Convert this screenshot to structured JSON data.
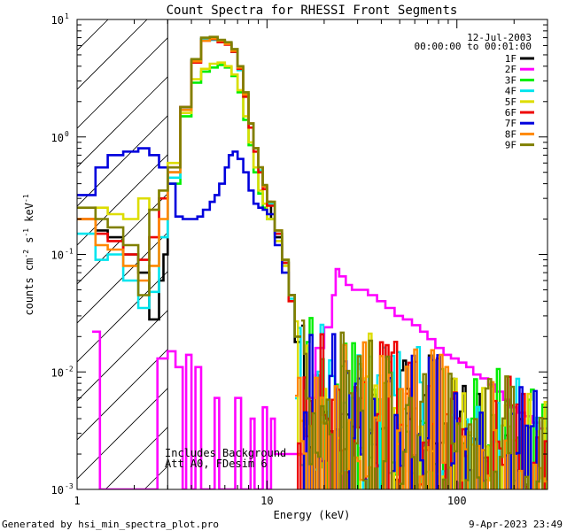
{
  "chart_data": {
    "type": "line",
    "title": "Count Spectra for RHESSI Front Segments",
    "xlabel": "Energy (keV)",
    "ylabel_parts": [
      "counts cm",
      "-2",
      " s",
      "-1",
      " keV",
      "-1"
    ],
    "xscale": "log",
    "yscale": "log",
    "xlim": [
      1,
      300
    ],
    "ylim": [
      0.001,
      10
    ],
    "x_ticks": [
      {
        "value": 1,
        "label": "1"
      },
      {
        "value": 10,
        "label": "10"
      },
      {
        "value": 100,
        "label": "100"
      }
    ],
    "y_ticks": [
      {
        "value": 0.001,
        "base": "10",
        "exp": "-3"
      },
      {
        "value": 0.01,
        "base": "10",
        "exp": "-2"
      },
      {
        "value": 0.1,
        "base": "10",
        "exp": "-1"
      },
      {
        "value": 1,
        "base": "10",
        "exp": "0"
      },
      {
        "value": 10,
        "base": "10",
        "exp": "1"
      }
    ],
    "hatched_region": {
      "x_from": 1,
      "x_to": 3,
      "meaning": "excluded low-energy range"
    },
    "date": "12-Jul-2003",
    "time_range": "00:00:00 to 00:01:00",
    "annotations": [
      "Includes Background",
      "Att A0, FDesim 6"
    ],
    "legend_position": "top-right",
    "series": [
      {
        "name": "1F",
        "color": "#000000",
        "bins": [
          [
            1,
            0.2
          ],
          [
            1.25,
            0.16
          ],
          [
            1.45,
            0.14
          ],
          [
            1.75,
            0.1
          ],
          [
            2.1,
            0.07
          ],
          [
            2.4,
            0.028
          ],
          [
            2.7,
            0.06
          ],
          [
            2.85,
            0.1
          ],
          [
            3,
            0.5
          ],
          [
            3.5,
            1.8
          ],
          [
            4,
            4.5
          ],
          [
            4.5,
            6.8
          ],
          [
            5,
            6.9
          ],
          [
            5.5,
            6.6
          ],
          [
            6,
            6.3
          ],
          [
            6.5,
            5.5
          ],
          [
            7,
            3.8
          ],
          [
            7.5,
            2.3
          ],
          [
            8,
            1.3
          ],
          [
            8.5,
            0.8
          ],
          [
            9,
            0.55
          ],
          [
            9.5,
            0.38
          ],
          [
            10,
            0.28
          ],
          [
            10.5,
            0.2
          ],
          [
            11,
            0.14
          ],
          [
            12,
            0.085
          ],
          [
            13,
            0.045
          ],
          [
            14,
            0.018
          ]
        ],
        "tail": "noise"
      },
      {
        "name": "2F",
        "color": "#ff00ff",
        "bins": [
          [
            1.2,
            0.022
          ],
          [
            1.32,
            0.001
          ],
          [
            2.65,
            0.013
          ],
          [
            3,
            0.015
          ],
          [
            3.3,
            0.011
          ],
          [
            3.6,
            0.001
          ],
          [
            3.75,
            0.014
          ],
          [
            4,
            0.001
          ],
          [
            4.2,
            0.011
          ],
          [
            4.5,
            0.001
          ],
          [
            5.3,
            0.006
          ],
          [
            5.6,
            0.001
          ],
          [
            6.8,
            0.006
          ],
          [
            7.3,
            0.001
          ],
          [
            8.2,
            0.004
          ],
          [
            8.6,
            0.001
          ],
          [
            9.5,
            0.005
          ],
          [
            10,
            0.001
          ],
          [
            10.5,
            0.004
          ],
          [
            11,
            0.002
          ],
          [
            16,
            0.006
          ],
          [
            18,
            0.016
          ],
          [
            20,
            0.024
          ],
          [
            22,
            0.045
          ],
          [
            23,
            0.075
          ],
          [
            24,
            0.065
          ],
          [
            26,
            0.055
          ],
          [
            28,
            0.05
          ],
          [
            31,
            0.05
          ],
          [
            34,
            0.045
          ],
          [
            38,
            0.04
          ],
          [
            42,
            0.035
          ],
          [
            47,
            0.03
          ],
          [
            52,
            0.028
          ],
          [
            58,
            0.025
          ],
          [
            64,
            0.022
          ],
          [
            70,
            0.019
          ],
          [
            77,
            0.016
          ],
          [
            85,
            0.014
          ],
          [
            93,
            0.013
          ],
          [
            102,
            0.012
          ],
          [
            112,
            0.011
          ],
          [
            122,
            0.0095
          ],
          [
            133,
            0.0088
          ],
          [
            146,
            0.0078
          ],
          [
            160,
            0.0068
          ],
          [
            175,
            0.0058
          ],
          [
            190,
            0.005
          ],
          [
            208,
            0.0045
          ],
          [
            228,
            0.0042
          ],
          [
            250,
            0.0037
          ],
          [
            272,
            0.0033
          ],
          [
            300,
            0.0033
          ]
        ],
        "tail": "none"
      },
      {
        "name": "3F",
        "color": "#00ee00",
        "bins": [
          [
            3,
            0.4
          ],
          [
            3.5,
            1.5
          ],
          [
            4,
            2.9
          ],
          [
            4.5,
            3.6
          ],
          [
            5,
            3.9
          ],
          [
            5.5,
            4.1
          ],
          [
            6,
            3.9
          ],
          [
            6.5,
            3.3
          ],
          [
            7,
            2.4
          ],
          [
            7.5,
            1.4
          ],
          [
            8,
            0.85
          ],
          [
            8.5,
            0.5
          ],
          [
            9,
            0.33
          ],
          [
            9.5,
            0.25
          ],
          [
            10,
            0.2
          ],
          [
            11,
            0.15
          ],
          [
            12,
            0.09
          ],
          [
            13,
            0.045
          ],
          [
            14,
            0.02
          ]
        ],
        "tail": "noise"
      },
      {
        "name": "4F",
        "color": "#00e5ee",
        "bins": [
          [
            1,
            0.15
          ],
          [
            1.25,
            0.09
          ],
          [
            1.45,
            0.1
          ],
          [
            1.75,
            0.06
          ],
          [
            2.1,
            0.035
          ],
          [
            2.4,
            0.048
          ],
          [
            2.7,
            0.14
          ],
          [
            3,
            0.45
          ],
          [
            3.5,
            1.7
          ],
          [
            4,
            4.4
          ],
          [
            4.5,
            6.8
          ],
          [
            5,
            6.7
          ],
          [
            5.5,
            6.5
          ],
          [
            6,
            6.2
          ],
          [
            6.5,
            5.3
          ],
          [
            7,
            3.7
          ],
          [
            7.5,
            2.2
          ],
          [
            8,
            1.2
          ],
          [
            8.5,
            0.75
          ],
          [
            9,
            0.52
          ],
          [
            9.5,
            0.36
          ],
          [
            10,
            0.27
          ],
          [
            11,
            0.15
          ],
          [
            12,
            0.085
          ],
          [
            13,
            0.042
          ]
        ],
        "tail": "noise"
      },
      {
        "name": "5F",
        "color": "#dddd00",
        "bins": [
          [
            1,
            0.2
          ],
          [
            1.25,
            0.25
          ],
          [
            1.45,
            0.22
          ],
          [
            1.75,
            0.2
          ],
          [
            2.1,
            0.3
          ],
          [
            2.4,
            0.24
          ],
          [
            2.7,
            0.35
          ],
          [
            3,
            0.6
          ],
          [
            3.5,
            1.6
          ],
          [
            4,
            3.1
          ],
          [
            4.5,
            3.8
          ],
          [
            5,
            4.2
          ],
          [
            5.5,
            4.3
          ],
          [
            6,
            4.0
          ],
          [
            6.5,
            3.4
          ],
          [
            7,
            2.5
          ],
          [
            7.5,
            1.5
          ],
          [
            8,
            0.9
          ],
          [
            8.5,
            0.55
          ],
          [
            9,
            0.35
          ],
          [
            9.5,
            0.27
          ],
          [
            10,
            0.2
          ],
          [
            11,
            0.13
          ],
          [
            12,
            0.08
          ],
          [
            13,
            0.04
          ]
        ],
        "tail": "noise"
      },
      {
        "name": "6F",
        "color": "#ee0000",
        "bins": [
          [
            1,
            0.2
          ],
          [
            1.25,
            0.15
          ],
          [
            1.45,
            0.13
          ],
          [
            1.75,
            0.1
          ],
          [
            2.1,
            0.09
          ],
          [
            2.4,
            0.14
          ],
          [
            2.7,
            0.3
          ],
          [
            3,
            0.55
          ],
          [
            3.5,
            1.8
          ],
          [
            4,
            4.3
          ],
          [
            4.5,
            6.6
          ],
          [
            5,
            6.8
          ],
          [
            5.5,
            6.4
          ],
          [
            6,
            6.1
          ],
          [
            6.5,
            5.3
          ],
          [
            7,
            3.8
          ],
          [
            7.5,
            2.2
          ],
          [
            8,
            1.2
          ],
          [
            8.5,
            0.75
          ],
          [
            9,
            0.5
          ],
          [
            9.5,
            0.36
          ],
          [
            10,
            0.26
          ],
          [
            11,
            0.15
          ],
          [
            12,
            0.085
          ],
          [
            13,
            0.04
          ]
        ],
        "tail": "noise"
      },
      {
        "name": "7F",
        "color": "#0000dd",
        "bins": [
          [
            1,
            0.32
          ],
          [
            1.25,
            0.55
          ],
          [
            1.45,
            0.7
          ],
          [
            1.75,
            0.75
          ],
          [
            2.1,
            0.8
          ],
          [
            2.4,
            0.7
          ],
          [
            2.7,
            0.55
          ],
          [
            3,
            0.4
          ],
          [
            3.3,
            0.21
          ],
          [
            3.6,
            0.2
          ],
          [
            4,
            0.2
          ],
          [
            4.3,
            0.21
          ],
          [
            4.6,
            0.24
          ],
          [
            5,
            0.28
          ],
          [
            5.3,
            0.32
          ],
          [
            5.6,
            0.4
          ],
          [
            6,
            0.55
          ],
          [
            6.3,
            0.7
          ],
          [
            6.6,
            0.75
          ],
          [
            7,
            0.65
          ],
          [
            7.5,
            0.5
          ],
          [
            8,
            0.35
          ],
          [
            8.5,
            0.27
          ],
          [
            9,
            0.25
          ],
          [
            9.5,
            0.24
          ],
          [
            10,
            0.22
          ],
          [
            11,
            0.12
          ],
          [
            12,
            0.07
          ],
          [
            13,
            0.045
          ],
          [
            14,
            0.02
          ]
        ],
        "tail": "noise"
      },
      {
        "name": "8F",
        "color": "#ff8800",
        "bins": [
          [
            1,
            0.2
          ],
          [
            1.25,
            0.12
          ],
          [
            1.45,
            0.11
          ],
          [
            1.75,
            0.08
          ],
          [
            2.1,
            0.06
          ],
          [
            2.4,
            0.08
          ],
          [
            2.7,
            0.2
          ],
          [
            3,
            0.5
          ],
          [
            3.5,
            1.7
          ],
          [
            4,
            4.4
          ],
          [
            4.5,
            6.6
          ],
          [
            5,
            6.9
          ],
          [
            5.5,
            6.6
          ],
          [
            6,
            6.2
          ],
          [
            6.5,
            5.4
          ],
          [
            7,
            3.9
          ],
          [
            7.5,
            2.3
          ],
          [
            8,
            1.3
          ],
          [
            8.5,
            0.8
          ],
          [
            9,
            0.55
          ],
          [
            9.5,
            0.38
          ],
          [
            10,
            0.28
          ],
          [
            11,
            0.16
          ],
          [
            12,
            0.09
          ],
          [
            13,
            0.045
          ]
        ],
        "tail": "noise"
      },
      {
        "name": "9F",
        "color": "#808000",
        "bins": [
          [
            1,
            0.25
          ],
          [
            1.25,
            0.2
          ],
          [
            1.45,
            0.17
          ],
          [
            1.75,
            0.12
          ],
          [
            2.1,
            0.045
          ],
          [
            2.4,
            0.24
          ],
          [
            2.7,
            0.35
          ],
          [
            3,
            0.55
          ],
          [
            3.5,
            1.8
          ],
          [
            4,
            4.6
          ],
          [
            4.5,
            7.0
          ],
          [
            5,
            7.1
          ],
          [
            5.5,
            6.7
          ],
          [
            6,
            6.4
          ],
          [
            6.5,
            5.6
          ],
          [
            7,
            4.0
          ],
          [
            7.5,
            2.4
          ],
          [
            8,
            1.3
          ],
          [
            8.5,
            0.8
          ],
          [
            9,
            0.55
          ],
          [
            9.5,
            0.39
          ],
          [
            10,
            0.28
          ],
          [
            11,
            0.16
          ],
          [
            12,
            0.09
          ],
          [
            13,
            0.045
          ],
          [
            14,
            0.02
          ]
        ],
        "tail": "noise"
      }
    ]
  },
  "footer": {
    "generated_by": "Generated by hsi_min_spectra_plot.pro",
    "timestamp": "9-Apr-2023 23:49"
  }
}
